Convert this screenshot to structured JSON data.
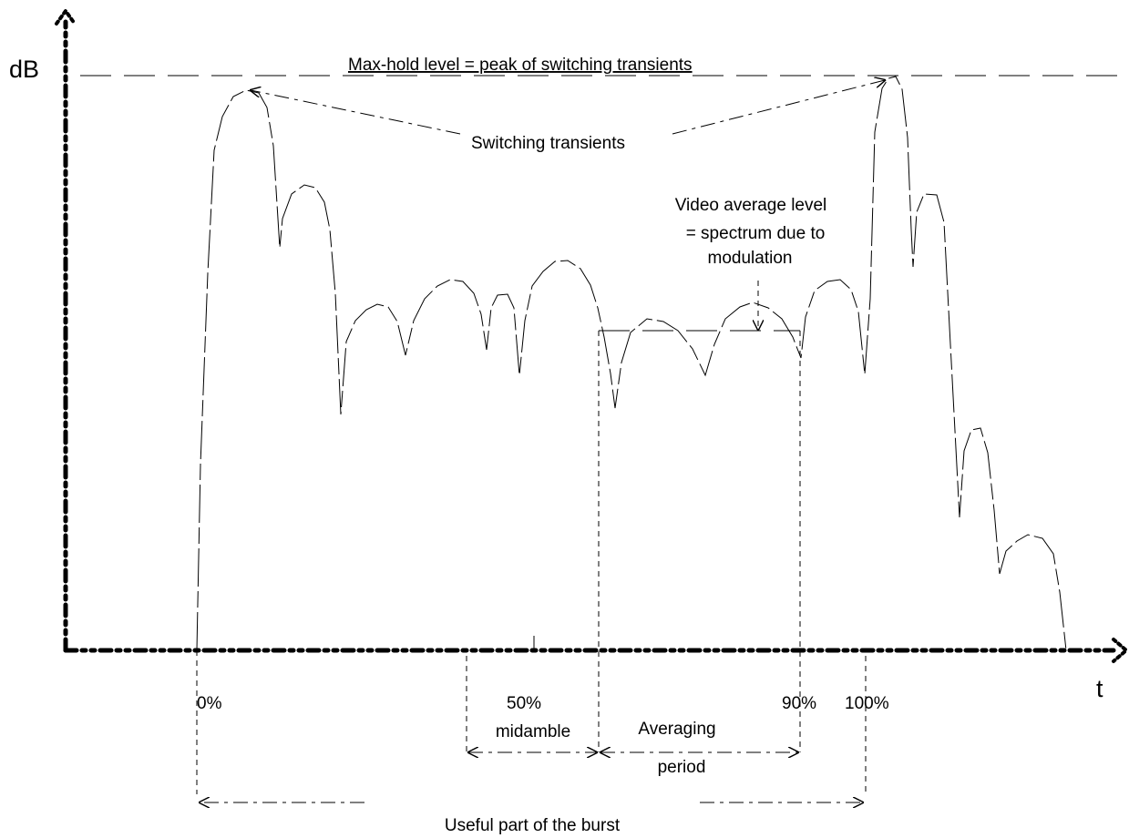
{
  "axes": {
    "y_label": "dB",
    "x_label": "t"
  },
  "annotations": {
    "max_hold": "Max-hold level = peak of switching transients",
    "switching": "Switching transients",
    "video_avg_line1": "Video average level",
    "video_avg_line2": "= spectrum due to",
    "video_avg_line3": "modulation"
  },
  "ticks": {
    "p0": "0%",
    "p50": "50%",
    "p90": "90%",
    "p100": "100%"
  },
  "ranges": {
    "midamble": "midamble",
    "averaging_line1": "Averaging",
    "averaging_line2": "period",
    "useful": "Useful part of the burst"
  }
}
